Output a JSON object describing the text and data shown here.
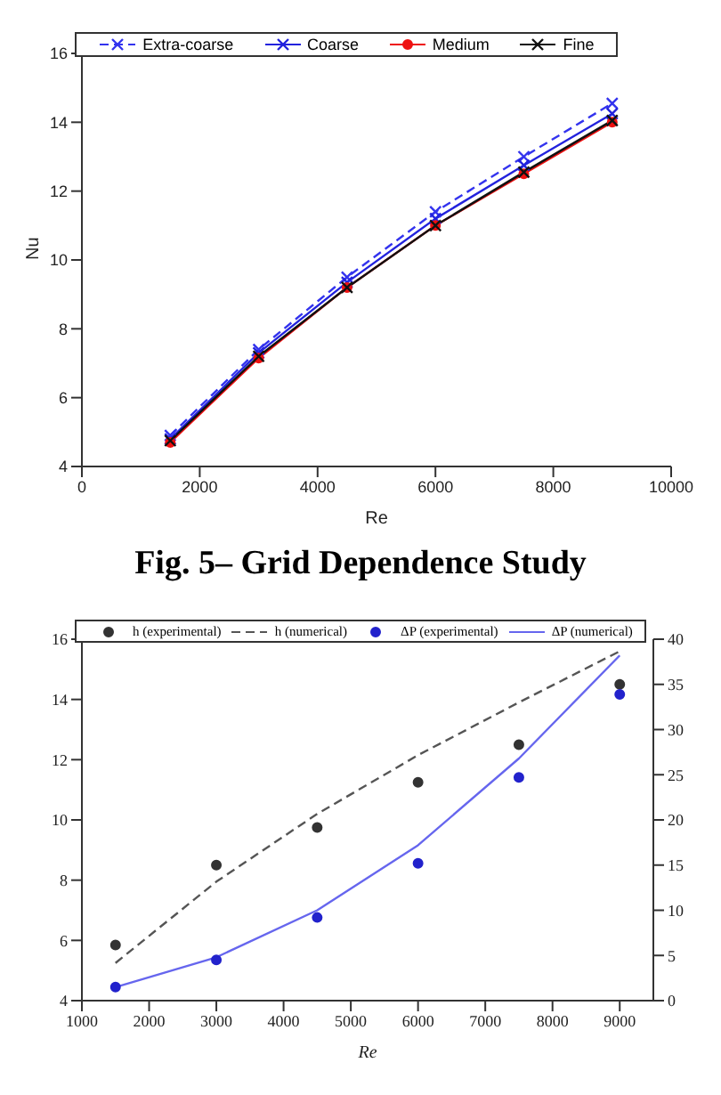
{
  "chart_data": [
    {
      "type": "line",
      "xlabel": "Re",
      "ylabel": "Nu",
      "xlim": [
        0,
        10000
      ],
      "xticks": [
        0,
        2000,
        4000,
        6000,
        8000,
        10000
      ],
      "ylim": [
        4,
        16
      ],
      "yticks": [
        4,
        6,
        8,
        10,
        12,
        14,
        16
      ],
      "legend": "top",
      "x": [
        1500,
        3000,
        4500,
        6000,
        7500,
        9000
      ],
      "annotations": [
        "Fig. 5– Grid Dependence Study"
      ],
      "series": [
        {
          "name": "Extra-coarse",
          "color": "#3333ee",
          "marker": "cross",
          "line_style": "dashed",
          "values": [
            4.9,
            7.4,
            9.5,
            11.4,
            13.0,
            14.55
          ]
        },
        {
          "name": "Coarse",
          "color": "#2222dd",
          "marker": "cross",
          "line_style": "solid",
          "values": [
            4.8,
            7.3,
            9.35,
            11.2,
            12.75,
            14.25
          ]
        },
        {
          "name": "Medium",
          "color": "#ee1111",
          "marker": "circle",
          "line_style": "solid",
          "values": [
            4.7,
            7.15,
            9.2,
            11.0,
            12.5,
            14.0
          ]
        },
        {
          "name": "Fine",
          "color": "#111111",
          "marker": "cross",
          "line_style": "solid",
          "values": [
            4.75,
            7.2,
            9.2,
            11.0,
            12.55,
            14.05
          ]
        }
      ]
    },
    {
      "type": "line",
      "xlabel": "Re",
      "xlim": [
        1000,
        9500
      ],
      "xticks": [
        1000,
        2000,
        3000,
        4000,
        5000,
        6000,
        7000,
        8000,
        9000
      ],
      "ylim": [
        4,
        16
      ],
      "yticks": [
        4,
        6,
        8,
        10,
        12,
        14,
        16
      ],
      "y2lim": [
        0,
        40
      ],
      "y2ticks": [
        0,
        5,
        10,
        15,
        20,
        25,
        30,
        35,
        40
      ],
      "legend": "top",
      "x": [
        1500,
        3000,
        4500,
        6000,
        7500,
        9000
      ],
      "series": [
        {
          "name": "h (experimental)",
          "type": "scatter",
          "color": "#333333",
          "marker": "circle",
          "values": [
            5.85,
            8.5,
            9.75,
            11.25,
            12.5,
            14.5
          ]
        },
        {
          "name": "h (numerical)",
          "color": "#555555",
          "marker": "none",
          "line_style": "dashed",
          "values": [
            5.25,
            7.95,
            10.2,
            12.15,
            13.9,
            15.6
          ]
        },
        {
          "name": "ΔP (experimental)",
          "type": "scatter",
          "axis": "y2",
          "color": "#2222cc",
          "marker": "circle",
          "values": [
            1.5,
            4.5,
            9.2,
            15.2,
            24.7,
            33.9
          ]
        },
        {
          "name": "ΔP (numerical)",
          "axis": "y2",
          "color": "#6666ee",
          "marker": "none",
          "line_style": "solid",
          "values": [
            1.5,
            4.8,
            10.0,
            17.2,
            26.8,
            38.2
          ]
        }
      ]
    }
  ]
}
